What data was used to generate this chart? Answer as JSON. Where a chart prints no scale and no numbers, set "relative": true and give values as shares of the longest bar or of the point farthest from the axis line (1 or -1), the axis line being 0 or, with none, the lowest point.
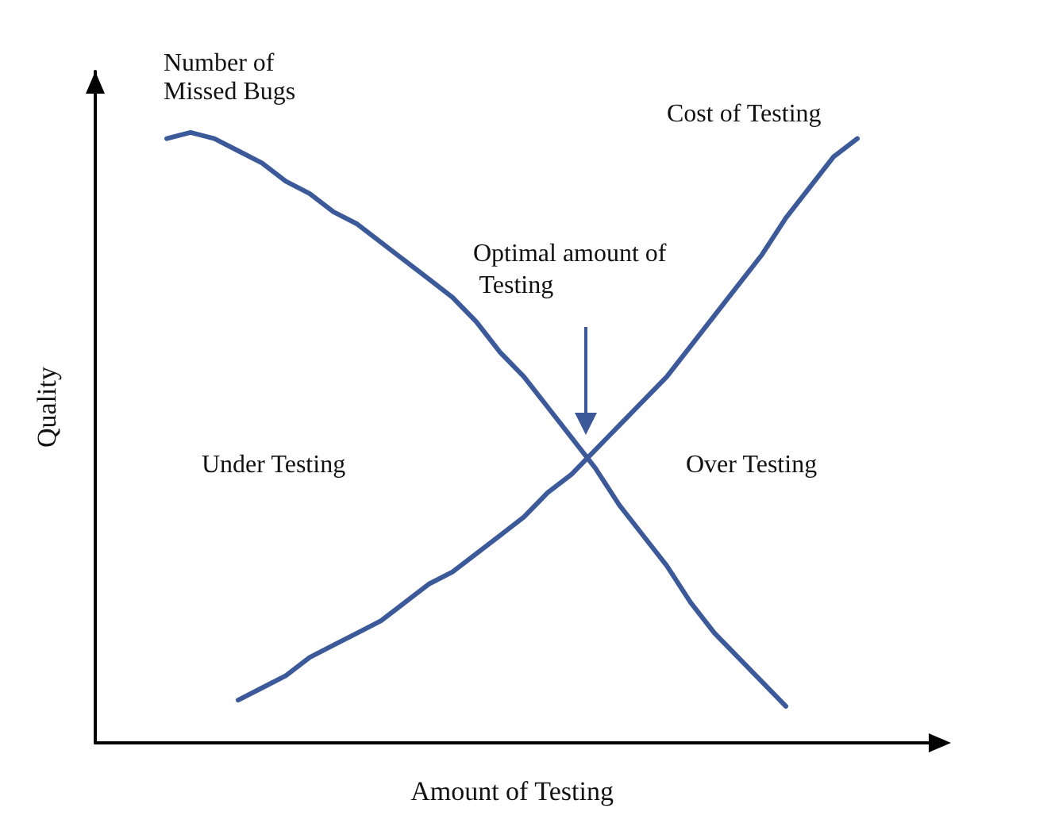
{
  "chart_data": {
    "type": "line",
    "relative": true,
    "xlabel": "Amount of Testing",
    "ylabel": "Quality",
    "categories": [
      null,
      null,
      null,
      null,
      null,
      null,
      null,
      null,
      null,
      null,
      null,
      null,
      null,
      null,
      null,
      null,
      null,
      null,
      null,
      null,
      null,
      null,
      null,
      null,
      null,
      null,
      null,
      null,
      null,
      null,
      null,
      null,
      null,
      null,
      null,
      null
    ],
    "series": [
      {
        "name": "Number of Missed Bugs",
        "color": "#3c5a99",
        "values": [
          null,
          null,
          null,
          0.99,
          1,
          0.99,
          0.97,
          0.95,
          0.92,
          0.9,
          0.87,
          0.85,
          0.82,
          0.79,
          0.76,
          0.73,
          0.69,
          0.64,
          0.6,
          0.55,
          0.5,
          0.45,
          0.39,
          0.34,
          0.29,
          0.23,
          0.18,
          0.14,
          0.1,
          0.06,
          null,
          null,
          null,
          null,
          null,
          null
        ]
      },
      {
        "name": "Cost of Testing",
        "color": "#3c5a99",
        "values": [
          null,
          null,
          null,
          null,
          null,
          null,
          0.07,
          0.09,
          0.11,
          0.14,
          0.16,
          0.18,
          0.2,
          0.23,
          0.26,
          0.28,
          0.31,
          0.34,
          0.37,
          0.41,
          0.44,
          0.48,
          0.52,
          0.56,
          0.6,
          0.65,
          0.7,
          0.75,
          0.8,
          0.86,
          0.91,
          0.96,
          0.99,
          null,
          null,
          null
        ]
      }
    ],
    "annotations": [
      "Optimal amount of Testing",
      "Under Testing",
      "Over Testing"
    ]
  }
}
